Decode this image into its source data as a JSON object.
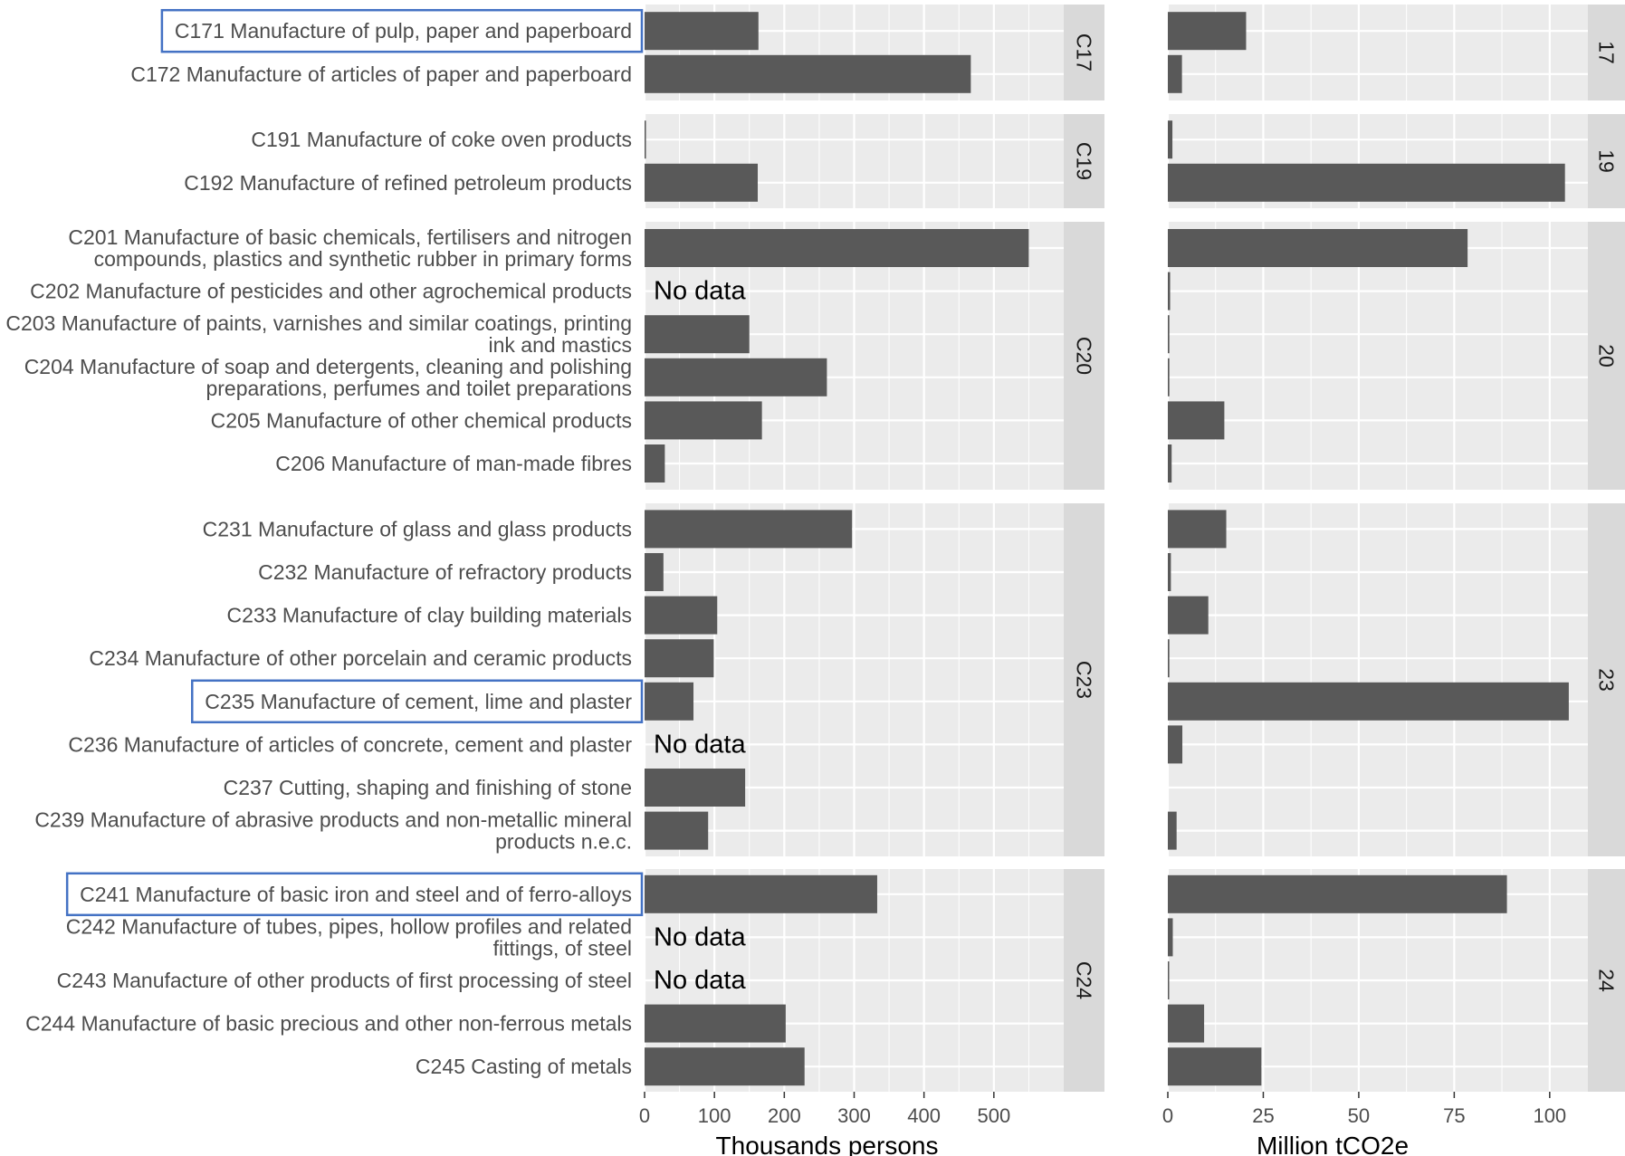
{
  "chart_data": {
    "type": "bar",
    "orientation": "horizontal",
    "facet_layout": "rows by division, two panel columns",
    "colors": {
      "bar": "#595959",
      "panel_bg": "#ebebeb",
      "strip_bg": "#d9d9d9",
      "grid": "#ffffff",
      "highlight_box": "#4472c4"
    },
    "grid": true,
    "no_data_label": "No data",
    "panels": [
      {
        "name": "employment",
        "xlabel": "Thousands persons",
        "xlim": [
          0,
          600
        ],
        "ticks": [
          0,
          100,
          200,
          300,
          400,
          500
        ]
      },
      {
        "name": "emissions",
        "xlabel": "Million tCO2e",
        "xlim": [
          0,
          110
        ],
        "ticks": [
          0,
          25,
          50,
          75,
          100
        ]
      }
    ],
    "groups": [
      {
        "strip_left": "C17",
        "strip_right": "17",
        "rows": [
          {
            "lines": [
              "C171 Manufacture of pulp, paper and paperboard"
            ],
            "employment": 163,
            "emissions": 20.5,
            "highlight": true
          },
          {
            "lines": [
              "C172 Manufacture of articles of paper and paperboard"
            ],
            "employment": 467,
            "emissions": 3.7,
            "highlight": false
          }
        ]
      },
      {
        "strip_left": "C19",
        "strip_right": "19",
        "rows": [
          {
            "lines": [
              "C191 Manufacture of coke oven products"
            ],
            "employment": 2,
            "emissions": 1.2,
            "highlight": false
          },
          {
            "lines": [
              "C192 Manufacture of refined petroleum products"
            ],
            "employment": 162,
            "emissions": 104,
            "highlight": false
          }
        ]
      },
      {
        "strip_left": "C20",
        "strip_right": "20",
        "rows": [
          {
            "lines": [
              "C201 Manufacture of basic chemicals, fertilisers and nitrogen",
              "compounds, plastics and synthetic rubber in primary forms"
            ],
            "employment": 550,
            "emissions": 78.5,
            "highlight": false
          },
          {
            "lines": [
              "C202 Manufacture of pesticides and other agrochemical products"
            ],
            "employment": null,
            "emissions": 0.6,
            "highlight": false
          },
          {
            "lines": [
              "C203 Manufacture of paints, varnishes and similar coatings, printing",
              "ink and mastics"
            ],
            "employment": 150,
            "emissions": 0.4,
            "highlight": false
          },
          {
            "lines": [
              "C204 Manufacture of soap and detergents, cleaning and polishing",
              "preparations, perfumes and toilet preparations"
            ],
            "employment": 261,
            "emissions": 0.4,
            "highlight": false
          },
          {
            "lines": [
              "C205 Manufacture of other chemical products"
            ],
            "employment": 168,
            "emissions": 14.8,
            "highlight": false
          },
          {
            "lines": [
              "C206 Manufacture of man-made fibres"
            ],
            "employment": 29,
            "emissions": 1.0,
            "highlight": false
          }
        ]
      },
      {
        "strip_left": "C23",
        "strip_right": "23",
        "rows": [
          {
            "lines": [
              "C231 Manufacture of glass and glass products"
            ],
            "employment": 297,
            "emissions": 15.3,
            "highlight": false
          },
          {
            "lines": [
              "C232 Manufacture of refractory products"
            ],
            "employment": 27,
            "emissions": 0.8,
            "highlight": false
          },
          {
            "lines": [
              "C233 Manufacture of clay building materials"
            ],
            "employment": 104,
            "emissions": 10.6,
            "highlight": false
          },
          {
            "lines": [
              "C234 Manufacture of other porcelain and ceramic products"
            ],
            "employment": 99,
            "emissions": 0.4,
            "highlight": false
          },
          {
            "lines": [
              "C235 Manufacture of cement, lime and plaster"
            ],
            "employment": 70,
            "emissions": 105,
            "highlight": true
          },
          {
            "lines": [
              "C236 Manufacture of articles of concrete, cement and plaster"
            ],
            "employment": null,
            "emissions": 3.8,
            "highlight": false
          },
          {
            "lines": [
              "C237 Cutting, shaping and finishing of stone"
            ],
            "employment": 144,
            "emissions": null,
            "highlight": false
          },
          {
            "lines": [
              "C239 Manufacture of abrasive products and non-metallic mineral",
              "products n.e.c."
            ],
            "employment": 91,
            "emissions": 2.3,
            "highlight": false
          }
        ]
      },
      {
        "strip_left": "C24",
        "strip_right": "24",
        "rows": [
          {
            "lines": [
              "C241 Manufacture of basic iron and steel and of ferro-alloys"
            ],
            "employment": 333,
            "emissions": 88.8,
            "highlight": true
          },
          {
            "lines": [
              "C242 Manufacture of tubes, pipes, hollow profiles and related",
              "fittings, of steel"
            ],
            "employment": null,
            "emissions": 1.3,
            "highlight": false
          },
          {
            "lines": [
              "C243 Manufacture of other products of first processing of steel"
            ],
            "employment": null,
            "emissions": 0.3,
            "highlight": false
          },
          {
            "lines": [
              "C244 Manufacture of basic precious and other non-ferrous metals"
            ],
            "employment": 202,
            "emissions": 9.5,
            "highlight": false
          },
          {
            "lines": [
              "C245 Casting of metals"
            ],
            "employment": 229,
            "emissions": 24.5,
            "highlight": false
          }
        ]
      }
    ]
  }
}
